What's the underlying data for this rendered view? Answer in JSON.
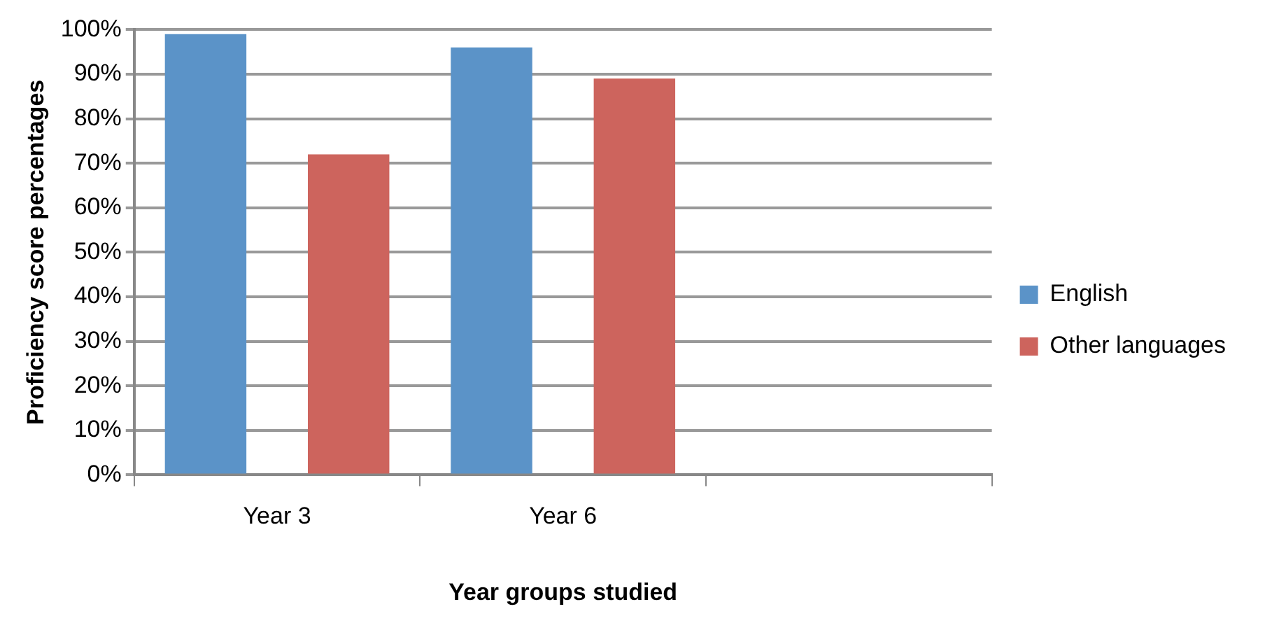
{
  "chart_data": {
    "type": "bar",
    "xlabel": "Year groups studied",
    "ylabel": "Proficiency score percentages",
    "categories": [
      "Year 3",
      "Year 6",
      null
    ],
    "series": [
      {
        "name": "English",
        "color": "#5b93c8",
        "values": [
          99,
          96,
          null
        ]
      },
      {
        "name": "Other languages",
        "color": "#cd645d",
        "values": [
          72,
          89,
          null
        ]
      }
    ],
    "ylim": [
      0,
      100
    ],
    "yticks": [
      {
        "value": 0,
        "label": "0%"
      },
      {
        "value": 10,
        "label": "10%"
      },
      {
        "value": 20,
        "label": "20%"
      },
      {
        "value": 30,
        "label": "30%"
      },
      {
        "value": 40,
        "label": "40%"
      },
      {
        "value": 50,
        "label": "50%"
      },
      {
        "value": 60,
        "label": "60%"
      },
      {
        "value": 70,
        "label": "70%"
      },
      {
        "value": 80,
        "label": "80%"
      },
      {
        "value": 90,
        "label": "90%"
      },
      {
        "value": 100,
        "label": "100%"
      }
    ],
    "grid": "y",
    "legend": "right"
  }
}
